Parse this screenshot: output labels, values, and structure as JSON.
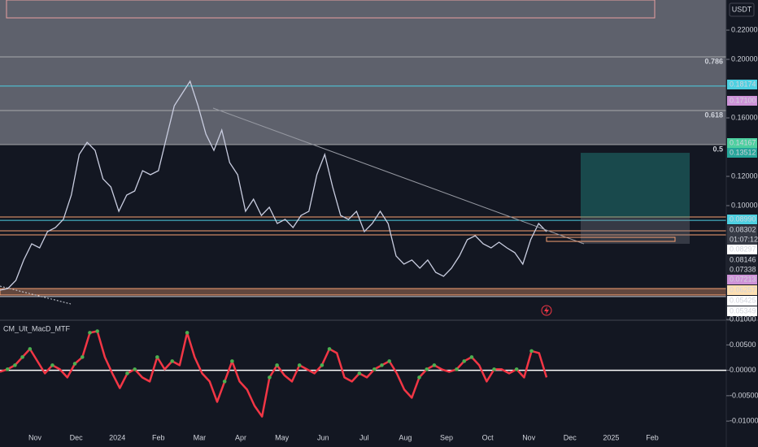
{
  "chart_data": [
    {
      "type": "line",
      "currency": "USDT",
      "log": false,
      "color": "#c9cde0",
      "ylim": [
        0.0222,
        0.2406
      ],
      "yticks": [
        {
          "value": 0.22,
          "label": "0.22000"
        },
        {
          "value": 0.2,
          "label": "0.20000"
        },
        {
          "value": 0.16,
          "label": "0.16000"
        },
        {
          "value": 0.12,
          "label": "0.12000"
        },
        {
          "value": 0.1,
          "label": "0.10000"
        }
      ],
      "values": [
        0.0422,
        0.0433,
        0.0489,
        0.0628,
        0.0739,
        0.0711,
        0.0822,
        0.085,
        0.0906,
        0.1072,
        0.135,
        0.1433,
        0.1378,
        0.1183,
        0.1128,
        0.0961,
        0.1072,
        0.11,
        0.1239,
        0.1211,
        0.1239,
        0.1461,
        0.1683,
        0.1767,
        0.185,
        0.1683,
        0.1489,
        0.1378,
        0.1517,
        0.1294,
        0.1211,
        0.0961,
        0.1044,
        0.0933,
        0.0989,
        0.0878,
        0.0906,
        0.085,
        0.0933,
        0.0961,
        0.1211,
        0.135,
        0.1128,
        0.0933,
        0.0906,
        0.0961,
        0.0822,
        0.0878,
        0.0961,
        0.0878,
        0.0656,
        0.06,
        0.0628,
        0.0572,
        0.0628,
        0.0544,
        0.0517,
        0.0572,
        0.0656,
        0.0767,
        0.0794,
        0.0739,
        0.0711,
        0.075,
        0.0711,
        0.0678,
        0.06,
        0.0767,
        0.0878,
        0.0822
      ],
      "premium_zone": {
        "top": 0.2406,
        "bottom": 0.14167,
        "color": "#787b86"
      },
      "fib_levels": [
        {
          "label": "0.786",
          "price": 0.2017
        },
        {
          "label": "0.618",
          "price": 0.165
        },
        {
          "label": "0.5",
          "price": 0.14167
        }
      ],
      "levels": [
        {
          "price": 0.18174,
          "color": "#4dd0e1"
        },
        {
          "price": 0.0922,
          "color": "#f7a072"
        },
        {
          "price": 0.0899,
          "color": "#4dd0e1"
        },
        {
          "price": 0.0828,
          "color": "#f7a072"
        },
        {
          "price": 0.08,
          "color": "#f7a072"
        },
        {
          "price": 0.0378,
          "color": "#d1d4dc"
        }
      ],
      "band": {
        "top": 0.0433,
        "bottom": 0.0389,
        "color": "#f7a072"
      },
      "position": {
        "target": 0.1361,
        "entry": 0.0917,
        "stop": 0.0739
      },
      "axis_badges": [
        {
          "label": "0.18174",
          "color": "#4dd0e1",
          "text": "#131722"
        },
        {
          "label": "0.17100",
          "color": "#ce93d8",
          "text": "#131722"
        },
        {
          "label": "0.14167",
          "color": "#4dd0a0",
          "text": "#131722"
        },
        {
          "label": "0.13512",
          "color": "#26a69a",
          "text": "#ffffff"
        },
        {
          "label": "0.08990",
          "color": "#4dd0e1",
          "text": "#131722"
        },
        {
          "label": "0.08302",
          "color": "#363a45",
          "text": "#ffffff"
        },
        {
          "label": "01:07:12",
          "color": "#363a45",
          "text": "#ffffff"
        },
        {
          "label": "0.08297",
          "color": "#ffffff",
          "text": "#131722"
        },
        {
          "label": "0.08146",
          "color": "#1e222d",
          "text": "#ffffff"
        },
        {
          "label": "0.07338",
          "color": "#1e222d",
          "text": "#ffffff"
        },
        {
          "label": "0.07213",
          "color": "#ce93d8",
          "text": "#131722"
        },
        {
          "label": "0.06257",
          "color": "#ffe0b2",
          "text": "#131722"
        },
        {
          "label": "0.05425",
          "color": "#ffffff",
          "text": "#131722"
        },
        {
          "label": "0.05349",
          "color": "#ffffff",
          "text": "#131722"
        }
      ]
    },
    {
      "type": "line",
      "title": "CM_Ult_MacD_MTF",
      "rise_color": "#4caf50",
      "fall_color": "#f23645",
      "ylim": [
        -0.0119,
        0.0097
      ],
      "yticks": [
        {
          "value": 0.01,
          "label": "0.01000"
        },
        {
          "value": 0.005,
          "label": "0.00500"
        },
        {
          "value": 0,
          "label": "0.00000"
        },
        {
          "value": -0.005,
          "label": "-0.00500"
        },
        {
          "value": -0.01,
          "label": "-0.01000"
        }
      ],
      "values": [
        -0.0003,
        0.0002,
        0.001,
        0.0026,
        0.0042,
        0.0018,
        -0.0006,
        0.001,
        0.0002,
        -0.0014,
        0.0013,
        0.0026,
        0.0074,
        0.0077,
        0.0026,
        -0.0006,
        -0.0035,
        -0.0006,
        0.0002,
        -0.0014,
        -0.0022,
        0.0026,
        0.0002,
        0.0018,
        0.001,
        0.0074,
        0.0026,
        -0.0006,
        -0.0022,
        -0.0062,
        -0.0022,
        0.0018,
        -0.0022,
        -0.0038,
        -0.007,
        -0.0091,
        -0.0014,
        0.001,
        -0.001,
        -0.0022,
        0.001,
        0.0002,
        -0.0006,
        0.001,
        0.0042,
        0.0034,
        -0.0014,
        -0.0022,
        -0.0006,
        -0.0014,
        0.0002,
        0.001,
        0.0018,
        -0.0006,
        -0.0038,
        -0.0054,
        -0.0014,
        0.0002,
        0.001,
        0.0002,
        -0.0003,
        0.0002,
        0.0018,
        0.0026,
        0.001,
        -0.0022,
        0.0002,
        0.0002,
        -0.0006,
        0.0002,
        -0.0014,
        0.0038,
        0.0034,
        -0.0014
      ]
    },
    {
      "type": "time_axis",
      "categories": [
        "Nov",
        "Dec",
        "2024",
        "Feb",
        "Mar",
        "Apr",
        "May",
        "Jun",
        "Jul",
        "Aug",
        "Sep",
        "Oct",
        "Nov",
        "Dec",
        "2025",
        "Feb"
      ]
    }
  ]
}
